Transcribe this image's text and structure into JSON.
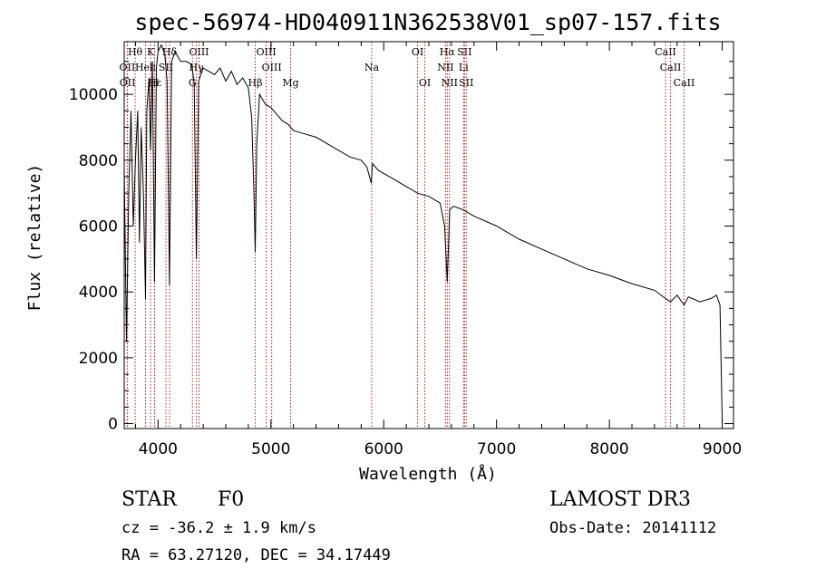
{
  "chart_data": {
    "type": "line",
    "title": "spec-56974-HD040911N362538V01_sp07-157.fits",
    "xlabel": "Wavelength (Å)",
    "ylabel": "Flux (relative)",
    "xlim": [
      3700,
      9100
    ],
    "ylim": [
      -150,
      11600
    ],
    "x_ticks": [
      4000,
      5000,
      6000,
      7000,
      8000,
      9000
    ],
    "y_ticks": [
      0,
      2000,
      4000,
      6000,
      8000,
      10000
    ],
    "grid": false,
    "series": [
      {
        "name": "spectrum",
        "x": [
          3700,
          3720,
          3740,
          3760,
          3780,
          3800,
          3820,
          3835,
          3850,
          3870,
          3889,
          3900,
          3920,
          3933,
          3950,
          3968,
          3985,
          4000,
          4030,
          4060,
          4080,
          4101,
          4120,
          4150,
          4200,
          4250,
          4300,
          4320,
          4340,
          4360,
          4400,
          4450,
          4500,
          4550,
          4600,
          4650,
          4700,
          4750,
          4800,
          4830,
          4850,
          4861,
          4875,
          4900,
          4950,
          5000,
          5050,
          5100,
          5150,
          5200,
          5300,
          5400,
          5500,
          5600,
          5700,
          5800,
          5850,
          5890,
          5900,
          5950,
          6000,
          6100,
          6200,
          6300,
          6400,
          6500,
          6540,
          6563,
          6585,
          6620,
          6700,
          6800,
          7000,
          7200,
          7400,
          7600,
          7800,
          8000,
          8200,
          8400,
          8498,
          8542,
          8600,
          8662,
          8700,
          8800,
          8900,
          8950,
          8980,
          9000
        ],
        "values": [
          7800,
          2500,
          7000,
          9500,
          6000,
          8000,
          9500,
          5500,
          9000,
          7000,
          3800,
          9500,
          10500,
          8300,
          11000,
          4300,
          10800,
          11300,
          11500,
          11200,
          10400,
          4200,
          11000,
          11300,
          11000,
          11000,
          10900,
          10300,
          5000,
          10400,
          10800,
          10700,
          10600,
          10800,
          10400,
          10700,
          10300,
          10500,
          10200,
          9300,
          7000,
          5200,
          8500,
          10000,
          9700,
          9600,
          9400,
          9200,
          9100,
          8900,
          8800,
          8700,
          8500,
          8300,
          8100,
          8000,
          7800,
          7300,
          7900,
          7700,
          7600,
          7400,
          7200,
          7000,
          6900,
          6700,
          6000,
          4300,
          6500,
          6600,
          6500,
          6300,
          6000,
          5600,
          5300,
          5000,
          4700,
          4500,
          4250,
          4050,
          3800,
          3700,
          3900,
          3600,
          3850,
          3700,
          3800,
          3900,
          3600,
          0
        ]
      }
    ],
    "line_marks": [
      {
        "name": "Hθ",
        "x": 3797,
        "label_row": 1
      },
      {
        "name": "OII",
        "x": 3727,
        "label_row": 2
      },
      {
        "name": "OII",
        "x": 3729,
        "label_row": 3
      },
      {
        "name": "K",
        "x": 3934,
        "label_row": 1
      },
      {
        "name": "Heli",
        "x": 3889,
        "label_row": 2
      },
      {
        "name": "Hε",
        "x": 3970,
        "label_row": 3
      },
      {
        "name": "Hδ",
        "x": 4102,
        "label_row": 1
      },
      {
        "name": "SII",
        "x": 4070,
        "label_row": 2
      },
      {
        "name": "H",
        "x": 3968,
        "label_row": 3
      },
      {
        "name": "OIII",
        "x": 4363,
        "label_row": 1
      },
      {
        "name": "Hγ",
        "x": 4340,
        "label_row": 2
      },
      {
        "name": "G",
        "x": 4305,
        "label_row": 3
      },
      {
        "name": "OIII",
        "x": 4959,
        "label_row": 1
      },
      {
        "name": "OIII",
        "x": 5007,
        "label_row": 2
      },
      {
        "name": "Hβ",
        "x": 4861,
        "label_row": 3
      },
      {
        "name": "Mg",
        "x": 5175,
        "label_row": 3
      },
      {
        "name": "Na",
        "x": 5893,
        "label_row": 2
      },
      {
        "name": "OI",
        "x": 6300,
        "label_row": 1
      },
      {
        "name": "OI",
        "x": 6364,
        "label_row": 3
      },
      {
        "name": "Hα",
        "x": 6563,
        "label_row": 1
      },
      {
        "name": "NII",
        "x": 6548,
        "label_row": 2
      },
      {
        "name": "NII",
        "x": 6583,
        "label_row": 3
      },
      {
        "name": "SII",
        "x": 6716,
        "label_row": 1
      },
      {
        "name": "Li",
        "x": 6708,
        "label_row": 2
      },
      {
        "name": "SII",
        "x": 6731,
        "label_row": 3
      },
      {
        "name": "CaII",
        "x": 8498,
        "label_row": 1
      },
      {
        "name": "CaII",
        "x": 8542,
        "label_row": 2
      },
      {
        "name": "CaII",
        "x": 8662,
        "label_row": 3
      }
    ],
    "marker_color": "#b22222",
    "line_color": "#000000"
  },
  "info": {
    "object_class": "STAR",
    "subclass": "F0",
    "survey": "LAMOST DR3",
    "cz": "cz = -36.2 ± 1.9 km/s",
    "obs_date": "Obs-Date: 20141112",
    "coords": "RA =  63.27120, DEC =  34.17449"
  }
}
